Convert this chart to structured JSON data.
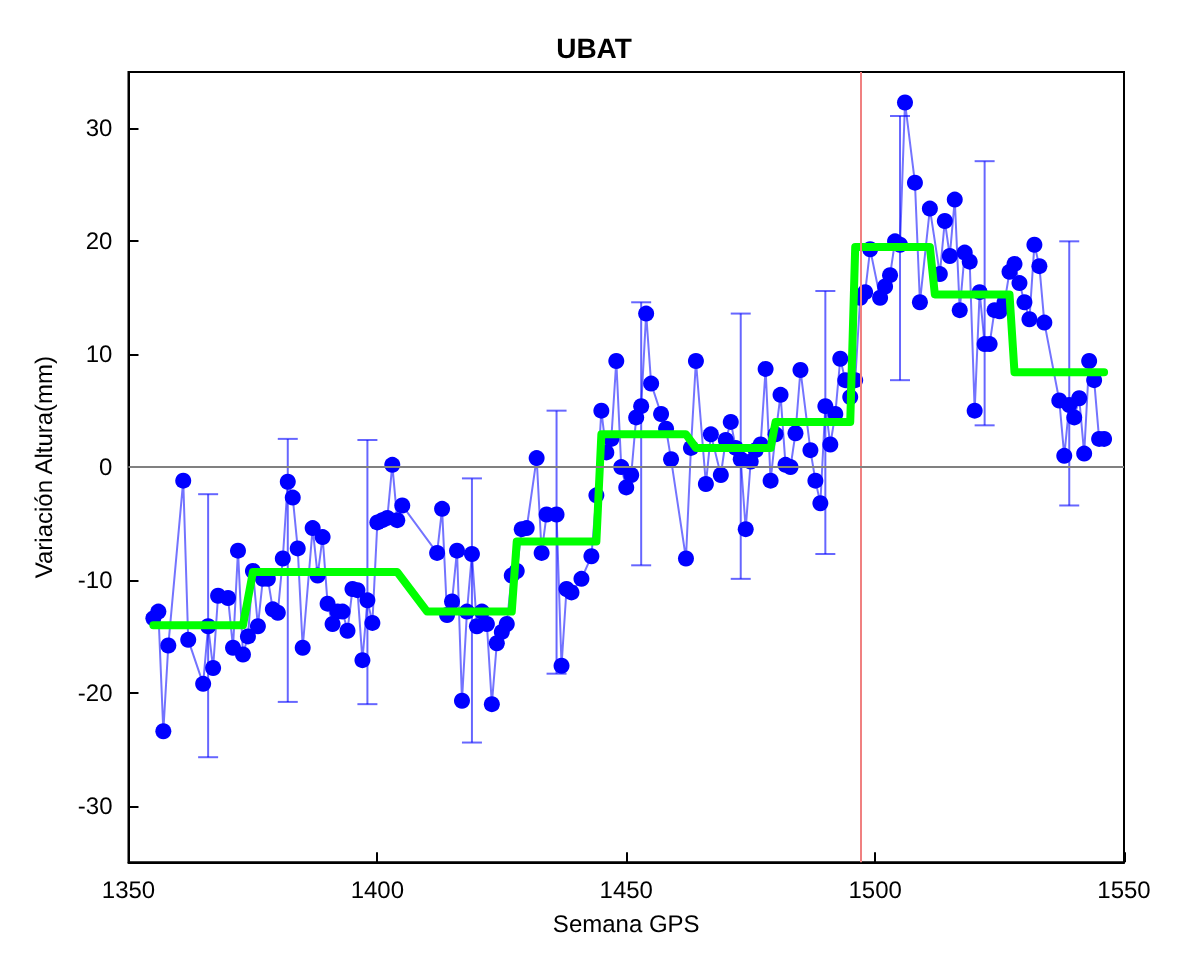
{
  "chart_data": {
    "type": "line",
    "title": "UBAT",
    "xlabel": "Semana GPS",
    "ylabel": "Variación Altura(mm)",
    "xlim": [
      1350,
      1550
    ],
    "xticks": [
      1350,
      1400,
      1450,
      1500,
      1550
    ],
    "ylim": [
      -35,
      35
    ],
    "yticks": [
      -30,
      -20,
      -10,
      0,
      10,
      20,
      30
    ],
    "grid": false,
    "marker": "circle",
    "ref_lines": [
      {
        "axis": "x",
        "value": 1497,
        "color": "#f08080"
      },
      {
        "axis": "y",
        "value": 0,
        "color": "#808080"
      }
    ],
    "series": [
      {
        "color": "#0000ff",
        "x": [
          1355,
          1356,
          1357,
          1358,
          1361,
          1362,
          1365,
          1366,
          1367,
          1368,
          1370,
          1371,
          1372,
          1373,
          1374,
          1375,
          1376,
          1377,
          1378,
          1379,
          1380,
          1381,
          1382,
          1383,
          1384,
          1385,
          1387,
          1388,
          1389,
          1390,
          1391,
          1392,
          1393,
          1394,
          1395,
          1396,
          1397,
          1398,
          1399,
          1400,
          1401,
          1402,
          1403,
          1404,
          1405,
          1412,
          1413,
          1414,
          1415,
          1416,
          1417,
          1418,
          1419,
          1420,
          1421,
          1422,
          1423,
          1424,
          1425,
          1426,
          1427,
          1428,
          1429,
          1430,
          1432,
          1433,
          1434,
          1436,
          1437,
          1438,
          1439,
          1441,
          1443,
          1444,
          1445,
          1446,
          1447,
          1448,
          1449,
          1450,
          1451,
          1452,
          1453,
          1454,
          1455,
          1457,
          1458,
          1459,
          1462,
          1463,
          1464,
          1466,
          1467,
          1469,
          1470,
          1471,
          1472,
          1473,
          1474,
          1475,
          1476,
          1477,
          1478,
          1479,
          1480,
          1481,
          1482,
          1483,
          1484,
          1485,
          1487,
          1488,
          1489,
          1490,
          1491,
          1492,
          1493,
          1494,
          1495,
          1496,
          1497,
          1498,
          1499,
          1501,
          1502,
          1503,
          1504,
          1505,
          1506,
          1508,
          1509,
          1511,
          1513,
          1514,
          1515,
          1516,
          1517,
          1518,
          1519,
          1520,
          1521,
          1522,
          1523,
          1524,
          1525,
          1526,
          1527,
          1528,
          1529,
          1530,
          1531,
          1532,
          1533,
          1534,
          1537,
          1538,
          1539,
          1540,
          1541,
          1542,
          1543,
          1544,
          1545,
          1546
        ],
        "values": [
          -13.4,
          -12.8,
          -23.4,
          -15.8,
          -1.2,
          -15.3,
          -19.2,
          -14.1,
          -17.8,
          -11.4,
          -11.6,
          -16.0,
          -7.4,
          -16.6,
          -15.0,
          -9.2,
          -14.1,
          -9.9,
          -9.9,
          -12.6,
          -12.9,
          -8.1,
          -1.3,
          -2.7,
          -7.2,
          -16.0,
          -5.4,
          -9.6,
          -6.2,
          -12.1,
          -13.9,
          -12.8,
          -12.8,
          -14.5,
          -10.8,
          -10.9,
          -17.1,
          -11.8,
          -13.8,
          -4.9,
          -4.7,
          -4.5,
          0.2,
          -4.7,
          -3.4,
          -7.6,
          -3.7,
          -13.1,
          -11.9,
          -7.4,
          -20.7,
          -12.8,
          -7.7,
          -14.1,
          -12.8,
          -13.9,
          -21.0,
          -15.6,
          -14.6,
          -13.9,
          -9.6,
          -9.2,
          -5.5,
          -5.4,
          0.8,
          -7.6,
          -4.2,
          -4.2,
          -17.6,
          -10.8,
          -11.1,
          -9.9,
          -7.9,
          -2.5,
          5.0,
          1.3,
          2.5,
          9.4,
          0,
          -1.8,
          -0.7,
          4.4,
          5.4,
          13.6,
          7.4,
          4.7,
          3.4,
          0.7,
          -8.1,
          1.7,
          9.4,
          -1.5,
          2.9,
          -0.7,
          2.4,
          4.0,
          1.7,
          0.7,
          -5.5,
          0.5,
          1.5,
          2.0,
          8.7,
          -1.2,
          2.9,
          6.4,
          0.2,
          0,
          3.0,
          8.6,
          1.5,
          -1.2,
          -3.2,
          5.4,
          2.0,
          4.7,
          9.6,
          7.7,
          6.2,
          7.7,
          15.0,
          15.5,
          19.3,
          15.0,
          16.0,
          17.0,
          20.0,
          19.7,
          32.3,
          25.2,
          14.6,
          22.9,
          17.1,
          21.8,
          18.7,
          23.7,
          13.9,
          19.0,
          18.2,
          5.0,
          15.5,
          10.9,
          10.9,
          13.9,
          13.8,
          14.6,
          17.3,
          18.0,
          16.3,
          14.6,
          13.1,
          19.7,
          17.8,
          12.8,
          5.9,
          1.0,
          5.5,
          4.4,
          6.1,
          1.2,
          9.4,
          7.7,
          2.5,
          2.5
        ],
        "errors": [
          null,
          null,
          null,
          null,
          null,
          null,
          null,
          [
            -25.7,
            -2.4
          ],
          null,
          null,
          null,
          null,
          null,
          null,
          null,
          null,
          null,
          null,
          null,
          null,
          null,
          null,
          [
            -20.8,
            2.5
          ],
          null,
          null,
          null,
          null,
          null,
          null,
          null,
          null,
          null,
          null,
          null,
          null,
          null,
          null,
          [
            -21.0,
            2.4
          ],
          null,
          null,
          null,
          null,
          null,
          null,
          null,
          null,
          null,
          null,
          null,
          null,
          null,
          null,
          [
            -24.4,
            -1.0
          ],
          null,
          null,
          null,
          null,
          null,
          null,
          null,
          null,
          null,
          null,
          null,
          null,
          null,
          null,
          [
            -18.3,
            5.0
          ],
          null,
          null,
          null,
          null,
          null,
          null,
          null,
          null,
          null,
          null,
          null,
          null,
          null,
          null,
          [
            -8.7,
            14.6
          ],
          null,
          null,
          null,
          null,
          null,
          null,
          null,
          null,
          null,
          null,
          null,
          null,
          null,
          null,
          [
            -9.9,
            13.6
          ],
          null,
          null,
          null,
          null,
          null,
          null,
          null,
          null,
          null,
          null,
          null,
          null,
          null,
          null,
          null,
          [
            -7.7,
            15.6
          ],
          null,
          null,
          null,
          null,
          null,
          null,
          null,
          null,
          null,
          null,
          null,
          null,
          null,
          [
            7.7,
            31.1
          ],
          null,
          null,
          null,
          null,
          null,
          null,
          null,
          null,
          null,
          null,
          null,
          null,
          null,
          [
            3.7,
            27.1
          ],
          null,
          null,
          null,
          null,
          null,
          null,
          null,
          null,
          null,
          null,
          null,
          null,
          null,
          null,
          [
            -3.4,
            20.0
          ],
          null,
          null,
          null,
          null,
          null,
          null,
          null
        ]
      },
      {
        "color": "#00ff00",
        "marker": "none",
        "x": [
          1355,
          1373,
          1375,
          1404,
          1410,
          1427,
          1428,
          1444,
          1445,
          1462,
          1464,
          1479,
          1480,
          1495,
          1496,
          1511,
          1512,
          1527,
          1528,
          1546
        ],
        "values": [
          -14,
          -14,
          -9.3,
          -9.3,
          -12.8,
          -12.8,
          -6.6,
          -6.6,
          2.9,
          2.9,
          1.7,
          1.7,
          4.0,
          4.0,
          19.5,
          19.5,
          15.3,
          15.3,
          8.4,
          8.4
        ]
      }
    ]
  }
}
